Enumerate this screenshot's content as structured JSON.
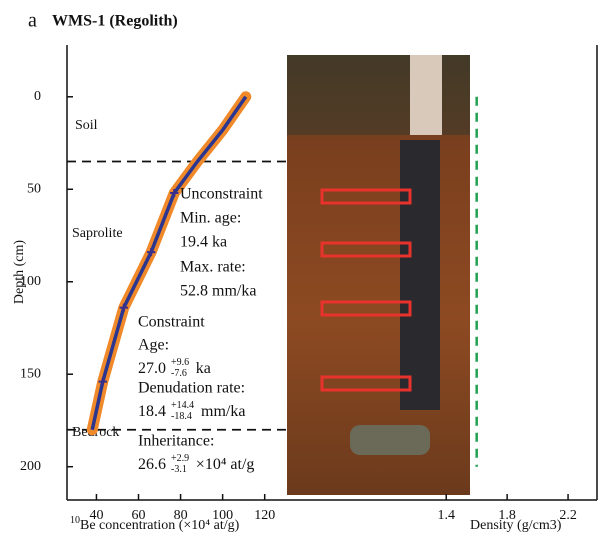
{
  "chart_data": {
    "type": "scatter",
    "panel_label": "a",
    "title": "WMS-1 (Regolith)",
    "y_label": "Depth (cm)",
    "x_label_sup": "10",
    "x_label": "Be concentration (×10⁴ at/g)",
    "x2_label": "Density (g/cm3)",
    "ylim": [
      -28,
      218
    ],
    "yticks": [
      0,
      50,
      100,
      150,
      200
    ],
    "xlim": [
      26,
      278
    ],
    "xticks": [
      40,
      60,
      80,
      100,
      120
    ],
    "x2lim": [
      -1.09,
      2.39
    ],
    "x2ticks": [
      1.4,
      1.8,
      2.2
    ],
    "boundaries": [
      35,
      180
    ],
    "zones": [
      "Soil",
      "Saprolite",
      "Bedrock"
    ],
    "series": [
      {
        "type": "line",
        "color": "#2a3690",
        "band_color": "#f0892a",
        "x": [
          111,
          100,
          88,
          77,
          66,
          53,
          43,
          38
        ],
        "y": [
          0,
          18,
          35,
          52,
          84,
          114,
          154,
          180
        ]
      },
      {
        "type": "scatter",
        "color": "#3a2f8a",
        "x": [
          77,
          66,
          53,
          43
        ],
        "y": [
          52,
          84,
          114,
          154
        ],
        "xerr": [
          2,
          2,
          2,
          2
        ]
      },
      {
        "type": "line",
        "axis": "x2",
        "color": "#22a052",
        "dashed": true,
        "x": [
          1.6,
          1.6
        ],
        "y": [
          0,
          200
        ]
      }
    ],
    "annotations": {
      "unconstraint": [
        "Unconstraint",
        "Min. age:",
        "19.4 ka",
        "Max. rate:",
        "52.8 mm/ka"
      ],
      "constraint": {
        "title": "Constraint",
        "age_label": "Age:",
        "age": {
          "value": "27.0",
          "plus": "+9.6",
          "minus": "-7.6",
          "unit": "ka"
        },
        "rate_label": "Denudation rate:",
        "rate": {
          "value": "18.4",
          "plus": "+14.4",
          "minus": "-18.4",
          "unit": "mm/ka"
        },
        "inheritance_label": "Inheritance:",
        "inheritance": {
          "value": "26.6",
          "plus": "+2.9",
          "minus": "-3.1",
          "unit": "×10⁴ at/g"
        }
      }
    }
  }
}
